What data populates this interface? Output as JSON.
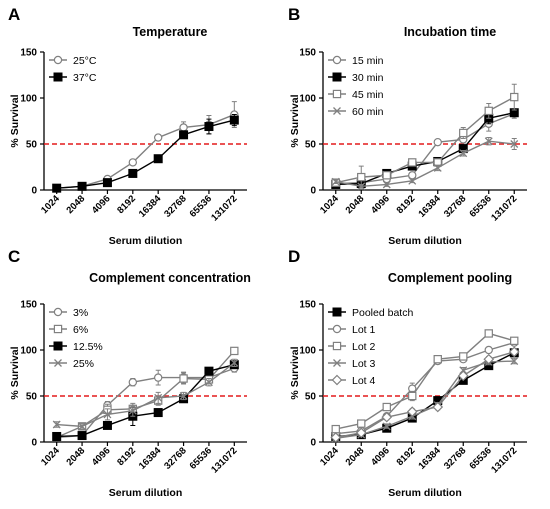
{
  "chart_data": [
    {
      "panel_letter": "A",
      "type": "line",
      "title": "Temperature",
      "xlabel": "Serum dilution",
      "ylabel": "% Survival",
      "ylim": [
        0,
        150
      ],
      "yticks": [
        "0",
        "50",
        "100",
        "150"
      ],
      "categories": [
        "1024",
        "2048",
        "4096",
        "8192",
        "16384",
        "32768",
        "65536",
        "131072"
      ],
      "reference_line": {
        "y": 50,
        "color": "#e41a1c",
        "style": "dashed"
      },
      "legend_position": "top-left",
      "series": [
        {
          "name": "25°C",
          "marker": "circle-open",
          "color": "#808080",
          "values": [
            2,
            4,
            12,
            30,
            57,
            68,
            71,
            82
          ],
          "errors": [
            1,
            1,
            2,
            2,
            3,
            6,
            10,
            14
          ]
        },
        {
          "name": "37°C",
          "marker": "square-filled",
          "color": "#000000",
          "values": [
            2,
            4,
            8,
            18,
            34,
            60,
            69,
            76
          ],
          "errors": [
            1,
            1,
            1,
            2,
            3,
            3,
            8,
            6
          ]
        }
      ]
    },
    {
      "panel_letter": "B",
      "type": "line",
      "title": "Incubation time",
      "xlabel": "Serum dilution",
      "ylabel": "% Survival",
      "ylim": [
        0,
        150
      ],
      "yticks": [
        "0",
        "50",
        "100",
        "150"
      ],
      "categories": [
        "1024",
        "2048",
        "4096",
        "8192",
        "16384",
        "32768",
        "65536",
        "131072"
      ],
      "reference_line": {
        "y": 50,
        "color": "#e41a1c",
        "style": "dashed"
      },
      "legend_position": "top-left",
      "series": [
        {
          "name": "15 min",
          "marker": "circle-open",
          "color": "#808080",
          "values": [
            7,
            8,
            12,
            16,
            52,
            55,
            72,
            83
          ],
          "errors": [
            2,
            3,
            3,
            3,
            2,
            4,
            8,
            5
          ]
        },
        {
          "name": "30 min",
          "marker": "square-filled",
          "color": "#000000",
          "values": [
            6,
            7,
            18,
            26,
            31,
            45,
            78,
            84
          ],
          "errors": [
            1,
            2,
            3,
            3,
            3,
            4,
            6,
            4
          ]
        },
        {
          "name": "45 min",
          "marker": "square-open",
          "color": "#808080",
          "values": [
            8,
            14,
            16,
            30,
            30,
            62,
            86,
            101
          ],
          "errors": [
            2,
            12,
            3,
            3,
            3,
            6,
            8,
            14
          ]
        },
        {
          "name": "60 min",
          "marker": "cross",
          "color": "#808080",
          "values": [
            9,
            4,
            6,
            10,
            24,
            40,
            53,
            50
          ],
          "errors": [
            2,
            2,
            2,
            2,
            3,
            3,
            4,
            6
          ]
        }
      ]
    },
    {
      "panel_letter": "C",
      "type": "line",
      "title": "Complement concentration",
      "xlabel": "Serum dilution",
      "ylabel": "% Survival",
      "ylim": [
        0,
        150
      ],
      "yticks": [
        "0",
        "50",
        "100",
        "150"
      ],
      "categories": [
        "1024",
        "2048",
        "4096",
        "8192",
        "16384",
        "32768",
        "65536",
        "131072"
      ],
      "reference_line": {
        "y": 50,
        "color": "#e41a1c",
        "style": "dashed"
      },
      "legend_position": "top-left",
      "series": [
        {
          "name": "3%",
          "marker": "circle-open",
          "color": "#808080",
          "values": [
            5,
            7,
            40,
            65,
            70,
            70,
            70,
            80
          ],
          "errors": [
            2,
            2,
            4,
            4,
            8,
            6,
            4,
            4
          ]
        },
        {
          "name": "6%",
          "marker": "square-open",
          "color": "#808080",
          "values": [
            5,
            17,
            35,
            36,
            45,
            69,
            68,
            99
          ],
          "errors": [
            2,
            3,
            6,
            6,
            5,
            6,
            4,
            3
          ]
        },
        {
          "name": "12.5%",
          "marker": "square-filled",
          "color": "#000000",
          "values": [
            6,
            7,
            18,
            28,
            32,
            47,
            77,
            84
          ],
          "errors": [
            2,
            2,
            3,
            10,
            3,
            4,
            3,
            4
          ]
        },
        {
          "name": "25%",
          "marker": "cross",
          "color": "#808080",
          "values": [
            19,
            17,
            30,
            34,
            48,
            50,
            65,
            86
          ],
          "errors": [
            3,
            3,
            6,
            6,
            6,
            4,
            4,
            4
          ]
        }
      ]
    },
    {
      "panel_letter": "D",
      "type": "line",
      "title": "Complement pooling",
      "xlabel": "Serum dilution",
      "ylabel": "% Survival",
      "ylim": [
        0,
        150
      ],
      "yticks": [
        "0",
        "50",
        "100",
        "150"
      ],
      "categories": [
        "1024",
        "2048",
        "4096",
        "8192",
        "16384",
        "32768",
        "65536",
        "131072"
      ],
      "reference_line": {
        "y": 50,
        "color": "#e41a1c",
        "style": "dashed"
      },
      "legend_position": "top-left",
      "series": [
        {
          "name": "Pooled batch",
          "marker": "square-filled",
          "color": "#000000",
          "values": [
            6,
            8,
            15,
            26,
            45,
            67,
            83,
            97
          ],
          "errors": [
            2,
            2,
            2,
            3,
            3,
            4,
            4,
            4
          ]
        },
        {
          "name": "Lot 1",
          "marker": "circle-open",
          "color": "#808080",
          "values": [
            9,
            12,
            28,
            58,
            88,
            90,
            100,
            108
          ],
          "errors": [
            2,
            2,
            3,
            6,
            3,
            3,
            3,
            3
          ]
        },
        {
          "name": "Lot 2",
          "marker": "square-open",
          "color": "#808080",
          "values": [
            14,
            20,
            38,
            50,
            90,
            93,
            118,
            110
          ],
          "errors": [
            2,
            2,
            3,
            5,
            3,
            3,
            3,
            3
          ]
        },
        {
          "name": "Lot 3",
          "marker": "cross",
          "color": "#808080",
          "values": [
            4,
            8,
            17,
            28,
            40,
            78,
            87,
            88
          ],
          "errors": [
            2,
            2,
            2,
            3,
            3,
            3,
            3,
            3
          ]
        },
        {
          "name": "Lot 4",
          "marker": "diamond-open",
          "color": "#808080",
          "values": [
            5,
            10,
            27,
            33,
            38,
            72,
            90,
            98
          ],
          "errors": [
            2,
            2,
            3,
            3,
            3,
            3,
            3,
            3
          ]
        }
      ]
    }
  ]
}
